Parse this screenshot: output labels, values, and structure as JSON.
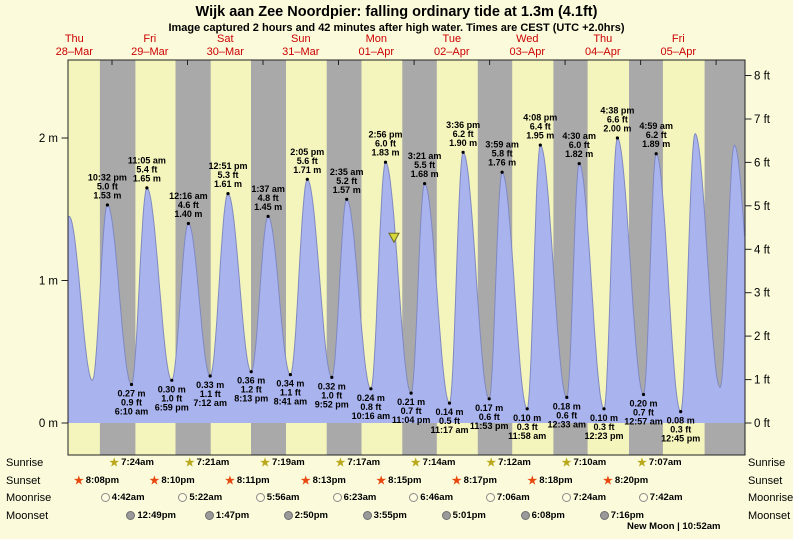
{
  "title": "Wijk aan Zee Noordpier: falling ordinary tide at 1.3m (4.1ft)",
  "subtitle": "Image captured 2 hours and 42 minutes after high water. Times are CEST (UTC +2.0hrs)",
  "colors": {
    "background": "#fbfbdc",
    "day_band": "#f4f4bd",
    "night_band": "#a9a9a9",
    "curve_fill": "#a9b3ee",
    "curve_stroke": "#8089c0",
    "day_label_red": "#cc0000",
    "plot_border": "#222222",
    "text": "#000000",
    "marker_fill": "#d8d83c",
    "marker_stroke": "#6b6b20"
  },
  "chart_data": {
    "type": "area",
    "title": "Tide height curve for Wijk aan Zee Noordpier",
    "t_unit": "hours since Thu 28-Mar 00:00",
    "t_range": [
      10,
      225.2
    ],
    "ylim_m": [
      0,
      2.77
    ],
    "days": [
      {
        "dow": "Thu",
        "date": "28–Mar"
      },
      {
        "dow": "Fri",
        "date": "29–Mar"
      },
      {
        "dow": "Sat",
        "date": "30–Mar"
      },
      {
        "dow": "Sun",
        "date": "31–Mar"
      },
      {
        "dow": "Mon",
        "date": "01–Apr"
      },
      {
        "dow": "Tue",
        "date": "02–Apr"
      },
      {
        "dow": "Wed",
        "date": "03–Apr"
      },
      {
        "dow": "Thu",
        "date": "04–Apr"
      },
      {
        "dow": "Fri",
        "date": "05–Apr"
      }
    ],
    "axes": {
      "left": [
        {
          "label": "2 m",
          "m": 2
        },
        {
          "label": "1 m",
          "m": 1
        },
        {
          "label": "0 m",
          "m": 0
        }
      ],
      "right": [
        {
          "label": "8 ft",
          "ft": 8
        },
        {
          "label": "7 ft",
          "ft": 7
        },
        {
          "label": "6 ft",
          "ft": 6
        },
        {
          "label": "5 ft",
          "ft": 5
        },
        {
          "label": "4 ft",
          "ft": 4
        },
        {
          "label": "3 ft",
          "ft": 3
        },
        {
          "label": "2 ft",
          "ft": 2
        },
        {
          "label": "1 ft",
          "ft": 1
        },
        {
          "label": "0 ft",
          "ft": 0
        }
      ]
    },
    "tide_events": [
      {
        "type": "high",
        "t": 10.33,
        "height_m": 1.45,
        "annotated": false
      },
      {
        "type": "low",
        "t": 17.75,
        "height_m": 0.3,
        "annotated": false
      },
      {
        "type": "high",
        "t": 22.53,
        "height_m": 1.53,
        "annotated": true,
        "time": "10:32 pm",
        "ft": "5.0 ft",
        "m": "1.53 m"
      },
      {
        "type": "low",
        "t": 30.17,
        "height_m": 0.27,
        "annotated": true,
        "time": "6:10 am",
        "ft": "0.9 ft",
        "m": "0.27 m"
      },
      {
        "type": "high",
        "t": 35.08,
        "height_m": 1.65,
        "annotated": true,
        "time": "11:05 am",
        "ft": "5.4 ft",
        "m": "1.65 m"
      },
      {
        "type": "low",
        "t": 42.98,
        "height_m": 0.3,
        "annotated": true,
        "time": "6:59 pm",
        "ft": "1.0 ft",
        "m": "0.30 m"
      },
      {
        "type": "high",
        "t": 48.27,
        "height_m": 1.4,
        "annotated": true,
        "time": "12:16 am",
        "ft": "4.6 ft",
        "m": "1.40 m"
      },
      {
        "type": "low",
        "t": 55.2,
        "height_m": 0.33,
        "annotated": true,
        "time": "7:12 am",
        "ft": "1.1 ft",
        "m": "0.33 m"
      },
      {
        "type": "high",
        "t": 60.85,
        "height_m": 1.61,
        "annotated": true,
        "time": "12:51 pm",
        "ft": "5.3 ft",
        "m": "1.61 m"
      },
      {
        "type": "low",
        "t": 68.22,
        "height_m": 0.36,
        "annotated": true,
        "time": "8:13 pm",
        "ft": "1.2 ft",
        "m": "0.36 m"
      },
      {
        "type": "high",
        "t": 73.62,
        "height_m": 1.45,
        "annotated": true,
        "time": "1:37 am",
        "ft": "4.8 ft",
        "m": "1.45 m"
      },
      {
        "type": "low",
        "t": 80.68,
        "height_m": 0.34,
        "annotated": true,
        "time": "8:41 am",
        "ft": "1.1 ft",
        "m": "0.34 m"
      },
      {
        "type": "high",
        "t": 86.08,
        "height_m": 1.71,
        "annotated": true,
        "time": "2:05 pm",
        "ft": "5.6 ft",
        "m": "1.71 m"
      },
      {
        "type": "low",
        "t": 93.87,
        "height_m": 0.32,
        "annotated": true,
        "time": "9:52 pm",
        "ft": "1.0 ft",
        "m": "0.32 m"
      },
      {
        "type": "high",
        "t": 98.58,
        "height_m": 1.57,
        "annotated": true,
        "time": "2:35 am",
        "ft": "5.2 ft",
        "m": "1.57 m"
      },
      {
        "type": "low",
        "t": 106.27,
        "height_m": 0.24,
        "annotated": true,
        "time": "10:16 am",
        "ft": "0.8 ft",
        "m": "0.24 m"
      },
      {
        "type": "high",
        "t": 110.93,
        "height_m": 1.83,
        "annotated": true,
        "time": "2:56 pm",
        "ft": "6.0 ft",
        "m": "1.83 m"
      },
      {
        "type": "low",
        "t": 119.07,
        "height_m": 0.21,
        "annotated": true,
        "time": "11:04 pm",
        "ft": "0.7 ft",
        "m": "0.21 m"
      },
      {
        "type": "high",
        "t": 123.35,
        "height_m": 1.68,
        "annotated": true,
        "time": "3:21 am",
        "ft": "5.5 ft",
        "m": "1.68 m"
      },
      {
        "type": "low",
        "t": 131.28,
        "height_m": 0.14,
        "annotated": true,
        "time": "11:17 am",
        "ft": "0.5 ft",
        "m": "0.14 m"
      },
      {
        "type": "high",
        "t": 135.6,
        "height_m": 1.9,
        "annotated": true,
        "time": "3:36 pm",
        "ft": "6.2 ft",
        "m": "1.90 m"
      },
      {
        "type": "low",
        "t": 143.88,
        "height_m": 0.17,
        "annotated": true,
        "time": "11:53 pm",
        "ft": "0.6 ft",
        "m": "0.17 m"
      },
      {
        "type": "high",
        "t": 147.98,
        "height_m": 1.76,
        "annotated": true,
        "time": "3:59 am",
        "ft": "5.8 ft",
        "m": "1.76 m"
      },
      {
        "type": "low",
        "t": 155.97,
        "height_m": 0.1,
        "annotated": true,
        "time": "11:58 am",
        "ft": "0.3 ft",
        "m": "0.10 m"
      },
      {
        "type": "high",
        "t": 160.13,
        "height_m": 1.95,
        "annotated": true,
        "time": "4:08 pm",
        "ft": "6.4 ft",
        "m": "1.95 m"
      },
      {
        "type": "low",
        "t": 168.55,
        "height_m": 0.18,
        "annotated": true,
        "time": "12:33 am",
        "ft": "0.6 ft",
        "m": "0.18 m"
      },
      {
        "type": "high",
        "t": 172.5,
        "height_m": 1.82,
        "annotated": true,
        "time": "4:30 am",
        "ft": "6.0 ft",
        "m": "1.82 m"
      },
      {
        "type": "low",
        "t": 180.38,
        "height_m": 0.1,
        "annotated": true,
        "time": "12:23 pm",
        "ft": "0.3 ft",
        "m": "0.10 m"
      },
      {
        "type": "high",
        "t": 184.63,
        "height_m": 2.0,
        "annotated": true,
        "time": "4:38 pm",
        "ft": "6.6 ft",
        "m": "2.00 m"
      },
      {
        "type": "low",
        "t": 192.95,
        "height_m": 0.2,
        "annotated": true,
        "time": "12:57 am",
        "ft": "0.7 ft",
        "m": "0.20 m"
      },
      {
        "type": "high",
        "t": 196.98,
        "height_m": 1.89,
        "annotated": true,
        "time": "4:59 am",
        "ft": "6.2 ft",
        "m": "1.89 m"
      },
      {
        "type": "low",
        "t": 204.75,
        "height_m": 0.08,
        "annotated": true,
        "time": "12:45 pm",
        "ft": "0.3 ft",
        "m": "0.08 m"
      },
      {
        "type": "high",
        "t": 209.33,
        "height_m": 2.03,
        "annotated": false
      },
      {
        "type": "low",
        "t": 217.3,
        "height_m": 0.25,
        "annotated": false
      },
      {
        "type": "high",
        "t": 221.8,
        "height_m": 1.95,
        "annotated": false
      },
      {
        "type": "low",
        "t": 229.5,
        "height_m": 0.25,
        "annotated": false
      }
    ],
    "night_bands": [
      [
        20.13,
        31.4
      ],
      [
        44.17,
        55.35
      ],
      [
        68.18,
        79.32
      ],
      [
        92.22,
        103.28
      ],
      [
        116.25,
        127.23
      ],
      [
        140.28,
        151.2
      ],
      [
        164.3,
        175.17
      ],
      [
        188.33,
        199.12
      ],
      [
        212.37,
        225.2
      ]
    ],
    "current_marker": {
      "t": 113.63,
      "height_m": 1.3,
      "desc": "current tide level 1.3m, falling"
    }
  },
  "astro": {
    "rows": [
      {
        "key": "sunrise",
        "name": "Sunrise",
        "icon": "star",
        "icon_name": "sunrise-star-icon",
        "icon_color": "#b9a81b",
        "entries": [
          {
            "label": "7:24am",
            "t": 31.4
          },
          {
            "label": "7:21am",
            "t": 55.35
          },
          {
            "label": "7:19am",
            "t": 79.32
          },
          {
            "label": "7:17am",
            "t": 103.28
          },
          {
            "label": "7:14am",
            "t": 127.23
          },
          {
            "label": "7:12am",
            "t": 151.2
          },
          {
            "label": "7:10am",
            "t": 175.17
          },
          {
            "label": "7:07am",
            "t": 199.12
          }
        ]
      },
      {
        "key": "sunset",
        "name": "Sunset",
        "icon": "star",
        "icon_name": "sunset-star-icon",
        "icon_color": "#e8480e",
        "entries": [
          {
            "label": "8:08pm",
            "t": 20.13
          },
          {
            "label": "8:10pm",
            "t": 44.17
          },
          {
            "label": "8:11pm",
            "t": 68.18
          },
          {
            "label": "8:13pm",
            "t": 92.22
          },
          {
            "label": "8:15pm",
            "t": 116.25
          },
          {
            "label": "8:17pm",
            "t": 140.28
          },
          {
            "label": "8:18pm",
            "t": 164.3
          },
          {
            "label": "8:20pm",
            "t": 188.33
          }
        ]
      },
      {
        "key": "moonrise",
        "name": "Moonrise",
        "icon": "circle",
        "icon_name": "moonrise-moon-icon",
        "icon_fill": "#fffce1",
        "icon_border": "#8a8a8a",
        "entries": [
          {
            "label": "4:42am",
            "t": 28.7
          },
          {
            "label": "5:22am",
            "t": 53.37
          },
          {
            "label": "5:56am",
            "t": 77.93
          },
          {
            "label": "6:23am",
            "t": 102.38
          },
          {
            "label": "6:46am",
            "t": 126.77
          },
          {
            "label": "7:06am",
            "t": 151.1
          },
          {
            "label": "7:24am",
            "t": 175.4
          },
          {
            "label": "7:42am",
            "t": 199.7
          }
        ]
      },
      {
        "key": "moonset",
        "name": "Moonset",
        "icon": "circle",
        "icon_name": "moonset-moon-icon",
        "icon_fill": "#9a9a9a",
        "icon_border": "#6e6e6e",
        "entries": [
          {
            "label": "12:49pm",
            "t": 36.82
          },
          {
            "label": "1:47pm",
            "t": 61.78
          },
          {
            "label": "2:50pm",
            "t": 86.83
          },
          {
            "label": "3:55pm",
            "t": 111.92
          },
          {
            "label": "5:01pm",
            "t": 137.02
          },
          {
            "label": "6:08pm",
            "t": 162.13
          },
          {
            "label": "7:16pm",
            "t": 187.27
          }
        ]
      }
    ],
    "new_moon": "New Moon | 10:52am"
  }
}
